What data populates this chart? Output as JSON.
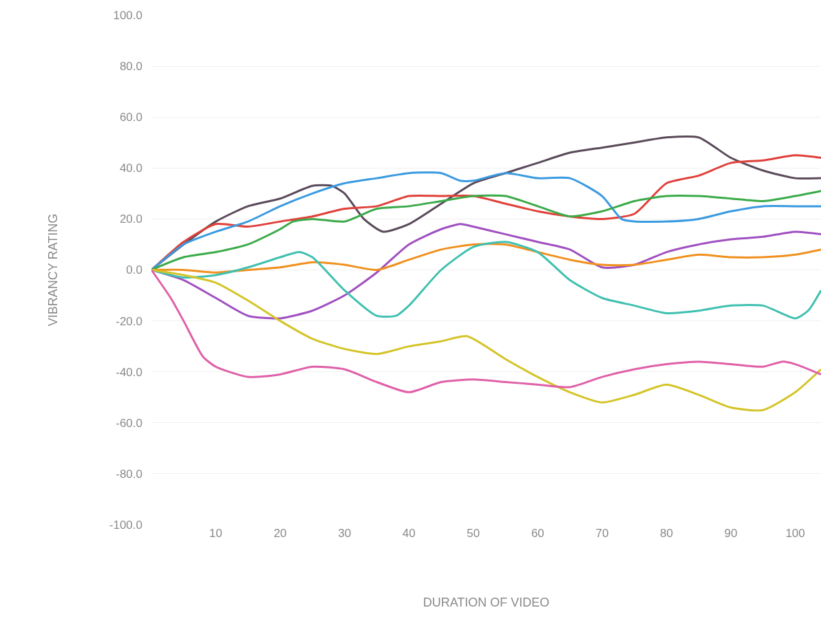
{
  "chart_data": {
    "type": "line",
    "xlabel": "DURATION OF VIDEO",
    "ylabel": "VIBRANCY RATING",
    "xlim": [
      0,
      104
    ],
    "xticks": [
      10,
      20,
      30,
      40,
      50,
      60,
      70,
      80,
      90,
      100
    ],
    "ylim": [
      -100,
      100
    ],
    "yticks": [
      {
        "value": -100,
        "label": "-100.0"
      },
      {
        "value": -80,
        "label": "-80.0"
      },
      {
        "value": -60,
        "label": "-60.0"
      },
      {
        "value": -40,
        "label": "-40.0"
      },
      {
        "value": -20,
        "label": "-20.0"
      },
      {
        "value": 0,
        "label": "0.0"
      },
      {
        "value": 20,
        "label": "20.0"
      },
      {
        "value": 40,
        "label": "40.0"
      },
      {
        "value": 60,
        "label": "60.0"
      },
      {
        "value": 80,
        "label": "80.0"
      },
      {
        "value": 100,
        "label": "100.0"
      }
    ],
    "grid": "y",
    "marker": "none",
    "line_style": "solid",
    "series": [
      {
        "color": "#5a4a5a",
        "x": [
          0,
          5,
          10,
          15,
          20,
          25,
          28,
          30,
          33,
          36,
          40,
          45,
          50,
          55,
          60,
          65,
          70,
          75,
          80,
          85,
          90,
          95,
          100,
          104
        ],
        "values": [
          0,
          10,
          19,
          25,
          28,
          33,
          33,
          30,
          20,
          15,
          18,
          26,
          34,
          38,
          42,
          46,
          48,
          50,
          52,
          52,
          44,
          39,
          36,
          36
        ]
      },
      {
        "color": "#e0403a",
        "x": [
          0,
          5,
          10,
          15,
          20,
          25,
          30,
          35,
          40,
          45,
          50,
          55,
          60,
          65,
          70,
          75,
          80,
          85,
          90,
          95,
          100,
          104
        ],
        "values": [
          0,
          11,
          18,
          17,
          19,
          21,
          24,
          25,
          29,
          29,
          29,
          26,
          23,
          21,
          20,
          22,
          34,
          37,
          42,
          43,
          45,
          44
        ]
      },
      {
        "color": "#3a9ae0",
        "x": [
          0,
          5,
          10,
          15,
          20,
          25,
          30,
          35,
          40,
          45,
          48,
          50,
          55,
          60,
          65,
          70,
          73,
          75,
          80,
          85,
          90,
          95,
          100,
          104
        ],
        "values": [
          0,
          10,
          15,
          19,
          25,
          30,
          34,
          36,
          38,
          38,
          35,
          35,
          38,
          36,
          36,
          29,
          20,
          19,
          19,
          20,
          23,
          25,
          25,
          25
        ]
      },
      {
        "color": "#3aaa48",
        "x": [
          0,
          5,
          10,
          15,
          20,
          22,
          25,
          30,
          35,
          40,
          45,
          50,
          55,
          60,
          65,
          70,
          75,
          80,
          85,
          90,
          95,
          100,
          104
        ],
        "values": [
          0,
          5,
          7,
          10,
          16,
          19,
          20,
          19,
          24,
          25,
          27,
          29,
          29,
          25,
          21,
          23,
          27,
          29,
          29,
          28,
          27,
          29,
          31
        ]
      },
      {
        "color": "#a050c0",
        "x": [
          0,
          5,
          10,
          15,
          20,
          25,
          30,
          35,
          40,
          45,
          48,
          50,
          55,
          60,
          65,
          70,
          75,
          80,
          85,
          90,
          95,
          100,
          104
        ],
        "values": [
          0,
          -4,
          -11,
          -18,
          -19,
          -16,
          -10,
          -1,
          10,
          16,
          18,
          17,
          14,
          11,
          8,
          1,
          2,
          7,
          10,
          12,
          13,
          15,
          14
        ]
      },
      {
        "color": "#f0901e",
        "x": [
          0,
          5,
          10,
          15,
          20,
          25,
          30,
          35,
          40,
          45,
          50,
          55,
          60,
          65,
          70,
          75,
          80,
          85,
          90,
          95,
          100,
          104
        ],
        "values": [
          0,
          0,
          -1,
          0,
          1,
          3,
          2,
          0,
          4,
          8,
          10,
          10,
          7,
          4,
          2,
          2,
          4,
          6,
          5,
          5,
          6,
          8
        ]
      },
      {
        "color": "#40c0b0",
        "x": [
          0,
          5,
          10,
          15,
          20,
          23,
          25,
          30,
          35,
          38,
          40,
          45,
          50,
          55,
          60,
          65,
          70,
          75,
          80,
          85,
          90,
          95,
          100,
          102,
          104
        ],
        "values": [
          0,
          -3,
          -2,
          1,
          5,
          7,
          5,
          -8,
          -18,
          -18,
          -14,
          0,
          9,
          11,
          7,
          -4,
          -11,
          -14,
          -17,
          -16,
          -14,
          -14,
          -19,
          -16,
          -8
        ]
      },
      {
        "color": "#d4c428",
        "x": [
          0,
          5,
          10,
          15,
          20,
          25,
          30,
          35,
          40,
          45,
          49,
          55,
          60,
          65,
          70,
          75,
          80,
          85,
          90,
          95,
          100,
          104
        ],
        "values": [
          0,
          -2,
          -5,
          -12,
          -20,
          -27,
          -31,
          -33,
          -30,
          -28,
          -26,
          -35,
          -42,
          -48,
          -52,
          -49,
          -45,
          -49,
          -54,
          -55,
          -48,
          -39
        ]
      },
      {
        "color": "#e060a8",
        "x": [
          0,
          3,
          5,
          8,
          10,
          15,
          20,
          25,
          30,
          35,
          40,
          45,
          50,
          55,
          60,
          65,
          70,
          75,
          80,
          85,
          90,
          95,
          98,
          100,
          104
        ],
        "values": [
          0,
          -11,
          -20,
          -34,
          -38,
          -42,
          -41,
          -38,
          -39,
          -44,
          -48,
          -44,
          -43,
          -44,
          -45,
          -46,
          -42,
          -39,
          -37,
          -36,
          -37,
          -38,
          -36,
          -37,
          -41
        ]
      }
    ]
  }
}
